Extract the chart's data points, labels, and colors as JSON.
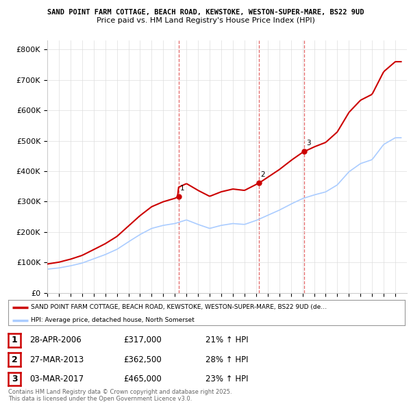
{
  "title1": "SAND POINT FARM COTTAGE, BEACH ROAD, KEWSTOKE, WESTON-SUPER-MARE, BS22 9UD",
  "title2": "Price paid vs. HM Land Registry's House Price Index (HPI)",
  "legend_property": "SAND POINT FARM COTTAGE, BEACH ROAD, KEWSTOKE, WESTON-SUPER-MARE, BS22 9UD (de…",
  "legend_hpi": "HPI: Average price, detached house, North Somerset",
  "property_color": "#cc0000",
  "hpi_color": "#aaccff",
  "vline_color": "#dd4444",
  "sale_dates": [
    2006.32,
    2013.24,
    2017.17
  ],
  "sale_prices": [
    317000,
    362500,
    465000
  ],
  "sale_labels": [
    "1",
    "2",
    "3"
  ],
  "sale_info": [
    [
      "1",
      "28-APR-2006",
      "£317,000",
      "21% ↑ HPI"
    ],
    [
      "2",
      "27-MAR-2013",
      "£362,500",
      "28% ↑ HPI"
    ],
    [
      "3",
      "03-MAR-2017",
      "£465,000",
      "23% ↑ HPI"
    ]
  ],
  "footer": "Contains HM Land Registry data © Crown copyright and database right 2025.\nThis data is licensed under the Open Government Licence v3.0.",
  "ylim": [
    0,
    830000
  ],
  "yticks": [
    0,
    100000,
    200000,
    300000,
    400000,
    500000,
    600000,
    700000,
    800000
  ],
  "ytick_labels": [
    "£0",
    "£100K",
    "£200K",
    "£300K",
    "£400K",
    "£500K",
    "£600K",
    "£700K",
    "£800K"
  ],
  "background": "#ffffff",
  "grid_color": "#dddddd",
  "hpi_raw": [
    78000,
    82000,
    89000,
    98000,
    112000,
    126000,
    143000,
    168000,
    192000,
    212000,
    222000,
    228000,
    240000,
    225000,
    212000,
    222000,
    228000,
    225000,
    238000,
    255000,
    272000,
    292000,
    310000,
    322000,
    332000,
    355000,
    398000,
    425000,
    438000,
    488000,
    510000
  ],
  "hpi_years": [
    1995,
    1996,
    1997,
    1998,
    1999,
    2000,
    2001,
    2002,
    2003,
    2004,
    2005,
    2006,
    2007,
    2008,
    2009,
    2010,
    2011,
    2012,
    2013,
    2014,
    2015,
    2016,
    2017,
    2018,
    2019,
    2020,
    2021,
    2022,
    2023,
    2024,
    2025
  ]
}
